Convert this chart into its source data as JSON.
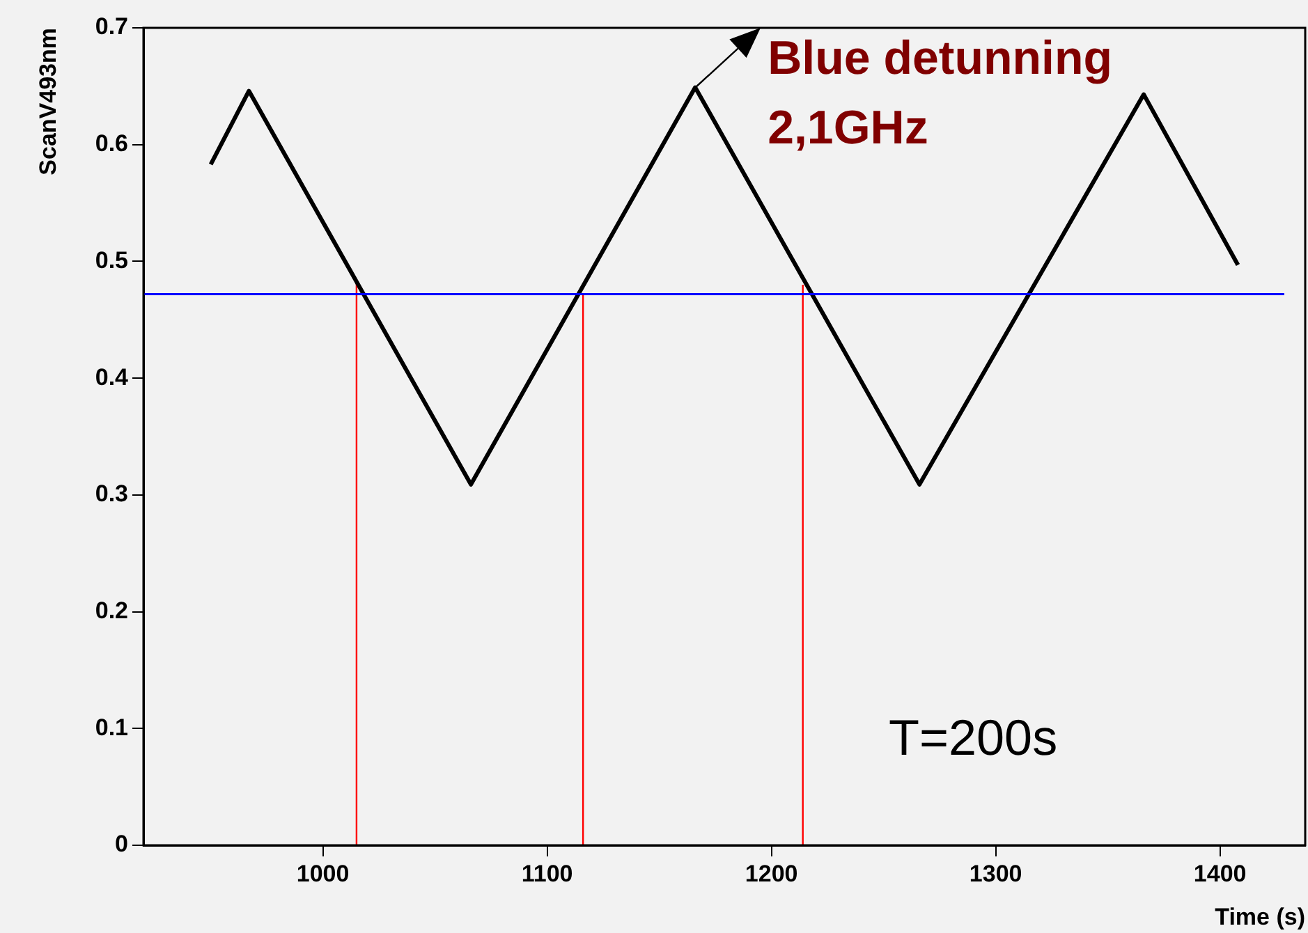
{
  "chart_data": {
    "type": "line",
    "xlabel": "Time (s)",
    "ylabel": "ScanV493nm",
    "xlim": [
      920,
      1438
    ],
    "xticks": [
      1000,
      1100,
      1200,
      1300,
      1400
    ],
    "ylim": [
      0,
      0.7
    ],
    "yticks": [
      0,
      0.1,
      0.2,
      0.3,
      0.4,
      0.5,
      0.6,
      0.7
    ],
    "grid": false,
    "legend": false,
    "marker": "none",
    "line_style": "solid",
    "series": [
      {
        "color": "#000000",
        "x": [
          950,
          967,
          1066,
          1166,
          1266,
          1366,
          1408
        ],
        "values": [
          0.583,
          0.646,
          0.309,
          0.649,
          0.309,
          0.643,
          0.497
        ]
      },
      {
        "color": "#ff0000",
        "x": [
          1015,
          1015
        ],
        "values": [
          0,
          0.482
        ]
      },
      {
        "color": "#ff0000",
        "x": [
          1116,
          1116
        ],
        "values": [
          0,
          0.472
        ]
      },
      {
        "color": "#ff0000",
        "x": [
          1214,
          1214
        ],
        "values": [
          0,
          0.48
        ]
      }
    ],
    "ref_lines": [
      {
        "axis": "y",
        "value": 0.472,
        "color": "#0000ff"
      }
    ],
    "annotations": [
      {
        "text": "Blue detunning\n2,1GHz",
        "x": 1166,
        "y": 0.649
      },
      "T=200s"
    ]
  }
}
